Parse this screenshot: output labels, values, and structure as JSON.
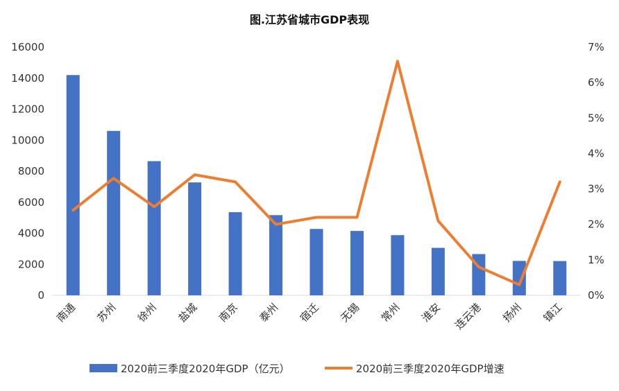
{
  "chart_data": {
    "type": "bar",
    "title": "图.江苏省城市GDP表现",
    "categories": [
      "南通",
      "苏州",
      "徐州",
      "盐城",
      "南京",
      "泰州",
      "宿迁",
      "无锡",
      "常州",
      "淮安",
      "连云港",
      "扬州",
      "镇江"
    ],
    "series": [
      {
        "name": "2020前三季度2020年GDP（亿元）",
        "type": "bar",
        "axis": "left",
        "color": "#4472C4",
        "values": [
          14200,
          10600,
          8650,
          7280,
          5360,
          5170,
          4280,
          4150,
          3880,
          3060,
          2660,
          2220,
          2210
        ]
      },
      {
        "name": "2020前三季度2020年GDP增速",
        "type": "line",
        "axis": "right",
        "color": "#ED7D31",
        "values": [
          0.024,
          0.033,
          0.025,
          0.034,
          0.032,
          0.02,
          0.022,
          0.022,
          0.066,
          0.021,
          0.008,
          0.003,
          0.032
        ]
      }
    ],
    "y_left": {
      "min": 0,
      "max": 16000,
      "ticks": [
        "16000",
        "14000",
        "12000",
        "10000",
        "8000",
        "6000",
        "4000",
        "2000",
        "0"
      ]
    },
    "y_right": {
      "min": 0,
      "max": 0.07,
      "ticks": [
        "7%",
        "6%",
        "5%",
        "4%",
        "3%",
        "2%",
        "1%",
        "0%"
      ]
    },
    "grid": false,
    "legend_position": "bottom"
  }
}
